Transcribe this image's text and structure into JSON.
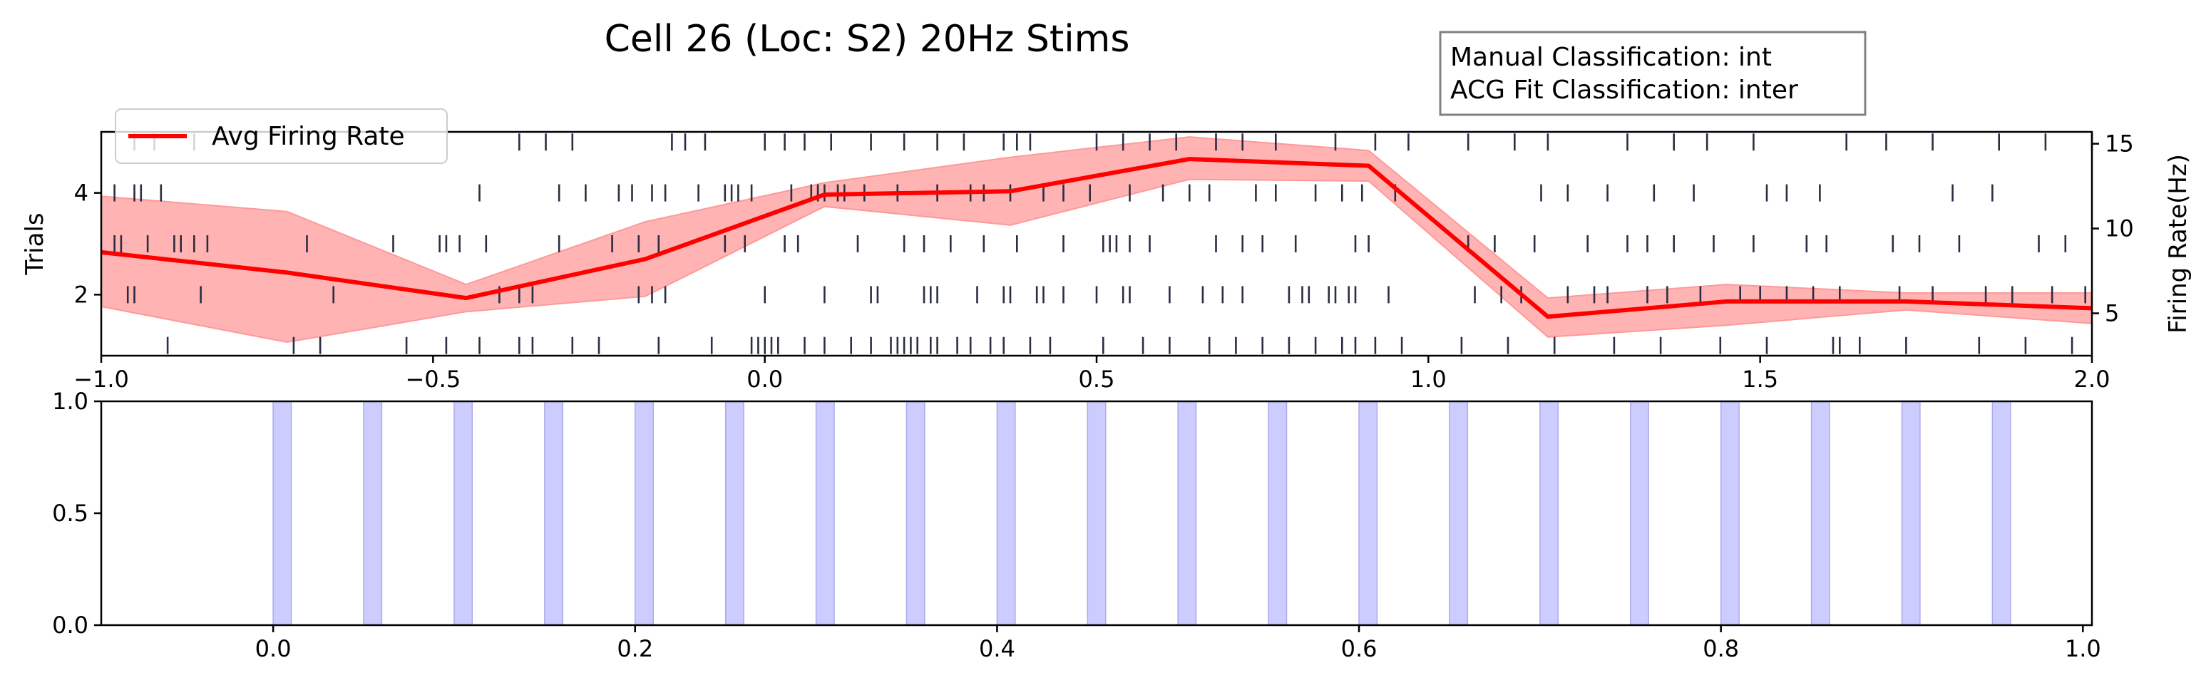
{
  "title": "Cell 26 (Loc: S2) 20Hz Stims",
  "annotation": {
    "manual": "Manual Classification: int",
    "acg": "ACG Fit Classification: inter"
  },
  "colors": {
    "spike": "#2b2d42",
    "rate_line": "#ff0000",
    "rate_band": "#ff9999",
    "stim": "#ccccff",
    "stim_edge": "#aaaaee"
  },
  "chart_data": [
    {
      "type": "line",
      "panel": "raster-and-rate",
      "xlim": [
        -1.0,
        2.0
      ],
      "ylabel": "Trials",
      "ylim": [
        0.8,
        5.2
      ],
      "y_ticks": [
        "2",
        "4"
      ],
      "y_tick_values": [
        2,
        4
      ],
      "right_ylabel": "Firing Rate(Hz)",
      "right_ylim": [
        2.5,
        15.7
      ],
      "right_y_ticks": [
        "5",
        "10",
        "15"
      ],
      "right_y_tick_values": [
        5,
        10,
        15
      ],
      "x_ticks": [
        "−1.0",
        "−0.5",
        "0.0",
        "0.5",
        "1.0",
        "1.5",
        "2.0"
      ],
      "x_tick_values": [
        -1.0,
        -0.5,
        0.0,
        0.5,
        1.0,
        1.5,
        2.0
      ],
      "legend": {
        "label": "Avg Firing Rate",
        "placement": "upper-left"
      },
      "rate_x": [
        -1.0,
        -0.72,
        -0.45,
        -0.18,
        0.09,
        0.37,
        0.64,
        0.91,
        1.18,
        1.45,
        1.72,
        2.0
      ],
      "rate_y": [
        8.6,
        7.4,
        5.9,
        8.2,
        12.0,
        12.2,
        14.1,
        13.7,
        4.8,
        5.7,
        5.7,
        5.3
      ],
      "rate_upper": [
        11.9,
        11.0,
        6.7,
        10.4,
        12.7,
        14.2,
        15.4,
        14.6,
        5.9,
        6.7,
        6.2,
        6.2
      ],
      "rate_lower": [
        5.4,
        3.3,
        5.1,
        6.0,
        11.3,
        10.2,
        12.9,
        12.8,
        3.6,
        4.3,
        5.2,
        4.4
      ],
      "raster": [
        {
          "trial": 1,
          "spikes": [
            -0.9,
            -0.71,
            -0.67,
            -0.54,
            -0.48,
            -0.43,
            -0.37,
            -0.35,
            -0.29,
            -0.25,
            -0.16,
            -0.08,
            -0.02,
            -0.01,
            0.0,
            0.01,
            0.02,
            0.06,
            0.09,
            0.13,
            0.16,
            0.19,
            0.2,
            0.21,
            0.22,
            0.23,
            0.25,
            0.26,
            0.29,
            0.31,
            0.34,
            0.36,
            0.4,
            0.43,
            0.51,
            0.57,
            0.61,
            0.67,
            0.71,
            0.75,
            0.79,
            0.83,
            0.87,
            0.89,
            0.92,
            0.96,
            1.05,
            1.12,
            1.19,
            1.28,
            1.35,
            1.44,
            1.51,
            1.61,
            1.62,
            1.65,
            1.72,
            1.83,
            1.9,
            1.97
          ]
        },
        {
          "trial": 2,
          "spikes": [
            -0.96,
            -0.95,
            -0.85,
            -0.65,
            -0.4,
            -0.37,
            -0.35,
            -0.19,
            -0.17,
            -0.15,
            0.0,
            0.09,
            0.16,
            0.17,
            0.24,
            0.25,
            0.26,
            0.32,
            0.36,
            0.37,
            0.41,
            0.42,
            0.45,
            0.5,
            0.54,
            0.55,
            0.61,
            0.66,
            0.69,
            0.72,
            0.79,
            0.81,
            0.82,
            0.85,
            0.86,
            0.88,
            0.89,
            0.94,
            1.07,
            1.11,
            1.14,
            1.21,
            1.25,
            1.27,
            1.33,
            1.36,
            1.41,
            1.47,
            1.5,
            1.54,
            1.58,
            1.62,
            1.71,
            1.76,
            1.84,
            1.88,
            1.94,
            1.99
          ]
        },
        {
          "trial": 3,
          "spikes": [
            -0.98,
            -0.97,
            -0.93,
            -0.89,
            -0.88,
            -0.86,
            -0.84,
            -0.69,
            -0.56,
            -0.49,
            -0.48,
            -0.46,
            -0.42,
            -0.31,
            -0.23,
            -0.19,
            -0.16,
            -0.06,
            -0.03,
            0.03,
            0.05,
            0.14,
            0.21,
            0.24,
            0.28,
            0.33,
            0.38,
            0.45,
            0.51,
            0.52,
            0.53,
            0.55,
            0.58,
            0.68,
            0.72,
            0.75,
            0.8,
            0.89,
            0.91,
            1.06,
            1.1,
            1.16,
            1.24,
            1.3,
            1.33,
            1.37,
            1.43,
            1.49,
            1.57,
            1.6,
            1.7,
            1.74,
            1.8,
            1.92,
            1.96
          ]
        },
        {
          "trial": 4,
          "spikes": [
            -0.98,
            -0.95,
            -0.94,
            -0.91,
            -0.43,
            -0.31,
            -0.27,
            -0.22,
            -0.2,
            -0.17,
            -0.15,
            -0.1,
            -0.06,
            -0.05,
            -0.04,
            -0.02,
            0.04,
            0.07,
            0.08,
            0.09,
            0.11,
            0.12,
            0.15,
            0.2,
            0.26,
            0.31,
            0.33,
            0.37,
            0.42,
            0.45,
            0.49,
            0.55,
            0.6,
            0.64,
            0.67,
            0.74,
            0.77,
            0.83,
            0.87,
            0.9,
            0.95,
            1.17,
            1.21,
            1.27,
            1.34,
            1.4,
            1.51,
            1.54,
            1.59,
            1.79,
            1.85
          ]
        },
        {
          "trial": 5,
          "spikes": [
            -0.95,
            -0.92,
            -0.86,
            -0.37,
            -0.33,
            -0.29,
            -0.14,
            -0.12,
            -0.09,
            0.0,
            0.03,
            0.06,
            0.1,
            0.16,
            0.21,
            0.26,
            0.3,
            0.36,
            0.38,
            0.4,
            0.5,
            0.54,
            0.58,
            0.62,
            0.68,
            0.72,
            0.77,
            0.86,
            0.92,
            0.97,
            1.06,
            1.13,
            1.18,
            1.3,
            1.37,
            1.42,
            1.49,
            1.63,
            1.69,
            1.76,
            1.86,
            1.93,
            2.0
          ]
        }
      ]
    },
    {
      "type": "bar",
      "panel": "stimulus-timing",
      "xlim": [
        -0.095,
        1.005
      ],
      "ylim": [
        0.0,
        1.0
      ],
      "x_ticks": [
        "0.0",
        "0.2",
        "0.4",
        "0.6",
        "0.8",
        "1.0"
      ],
      "x_tick_values": [
        0.0,
        0.2,
        0.4,
        0.6,
        0.8,
        1.0
      ],
      "y_ticks": [
        "0.0",
        "0.5",
        "1.0"
      ],
      "y_tick_values": [
        0.0,
        0.5,
        1.0
      ],
      "stim_duration": 0.01,
      "stim_onsets": [
        0.0,
        0.05,
        0.1,
        0.15,
        0.2,
        0.25,
        0.3,
        0.35,
        0.4,
        0.45,
        0.5,
        0.55,
        0.6,
        0.65,
        0.7,
        0.75,
        0.8,
        0.85,
        0.9,
        0.95
      ]
    }
  ]
}
